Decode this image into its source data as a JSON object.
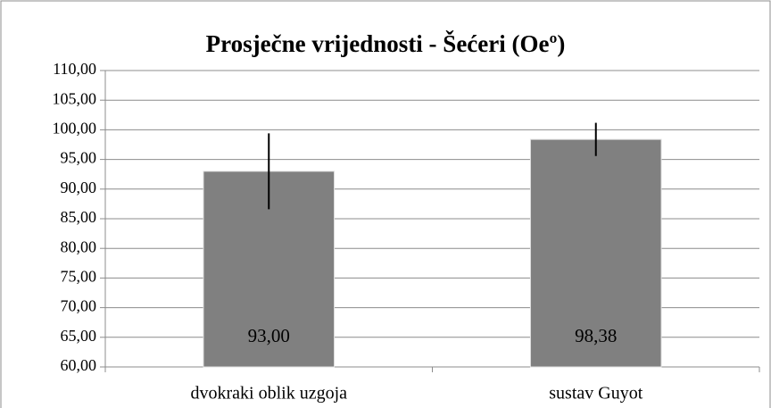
{
  "chart_data": {
    "type": "bar",
    "title": "Prosječne vrijednosti - Šećeri (Oeº)",
    "categories": [
      "dvokraki oblik uzgoja",
      "sustav Guyot"
    ],
    "values": [
      93.0,
      98.38
    ],
    "value_labels": [
      "93,00",
      "98,38"
    ],
    "errors": [
      6.4,
      2.8
    ],
    "color": "#808080",
    "ylim": [
      60,
      110
    ],
    "yticks": [
      {
        "value": 60,
        "label": "60,00"
      },
      {
        "value": 65,
        "label": "65,00"
      },
      {
        "value": 70,
        "label": "70,00"
      },
      {
        "value": 75,
        "label": "75,00"
      },
      {
        "value": 80,
        "label": "80,00"
      },
      {
        "value": 85,
        "label": "85,00"
      },
      {
        "value": 90,
        "label": "90,00"
      },
      {
        "value": 95,
        "label": "95,00"
      },
      {
        "value": 100,
        "label": "100,00"
      },
      {
        "value": 105,
        "label": "105,00"
      },
      {
        "value": 110,
        "label": "110,00"
      }
    ],
    "grid": true
  }
}
